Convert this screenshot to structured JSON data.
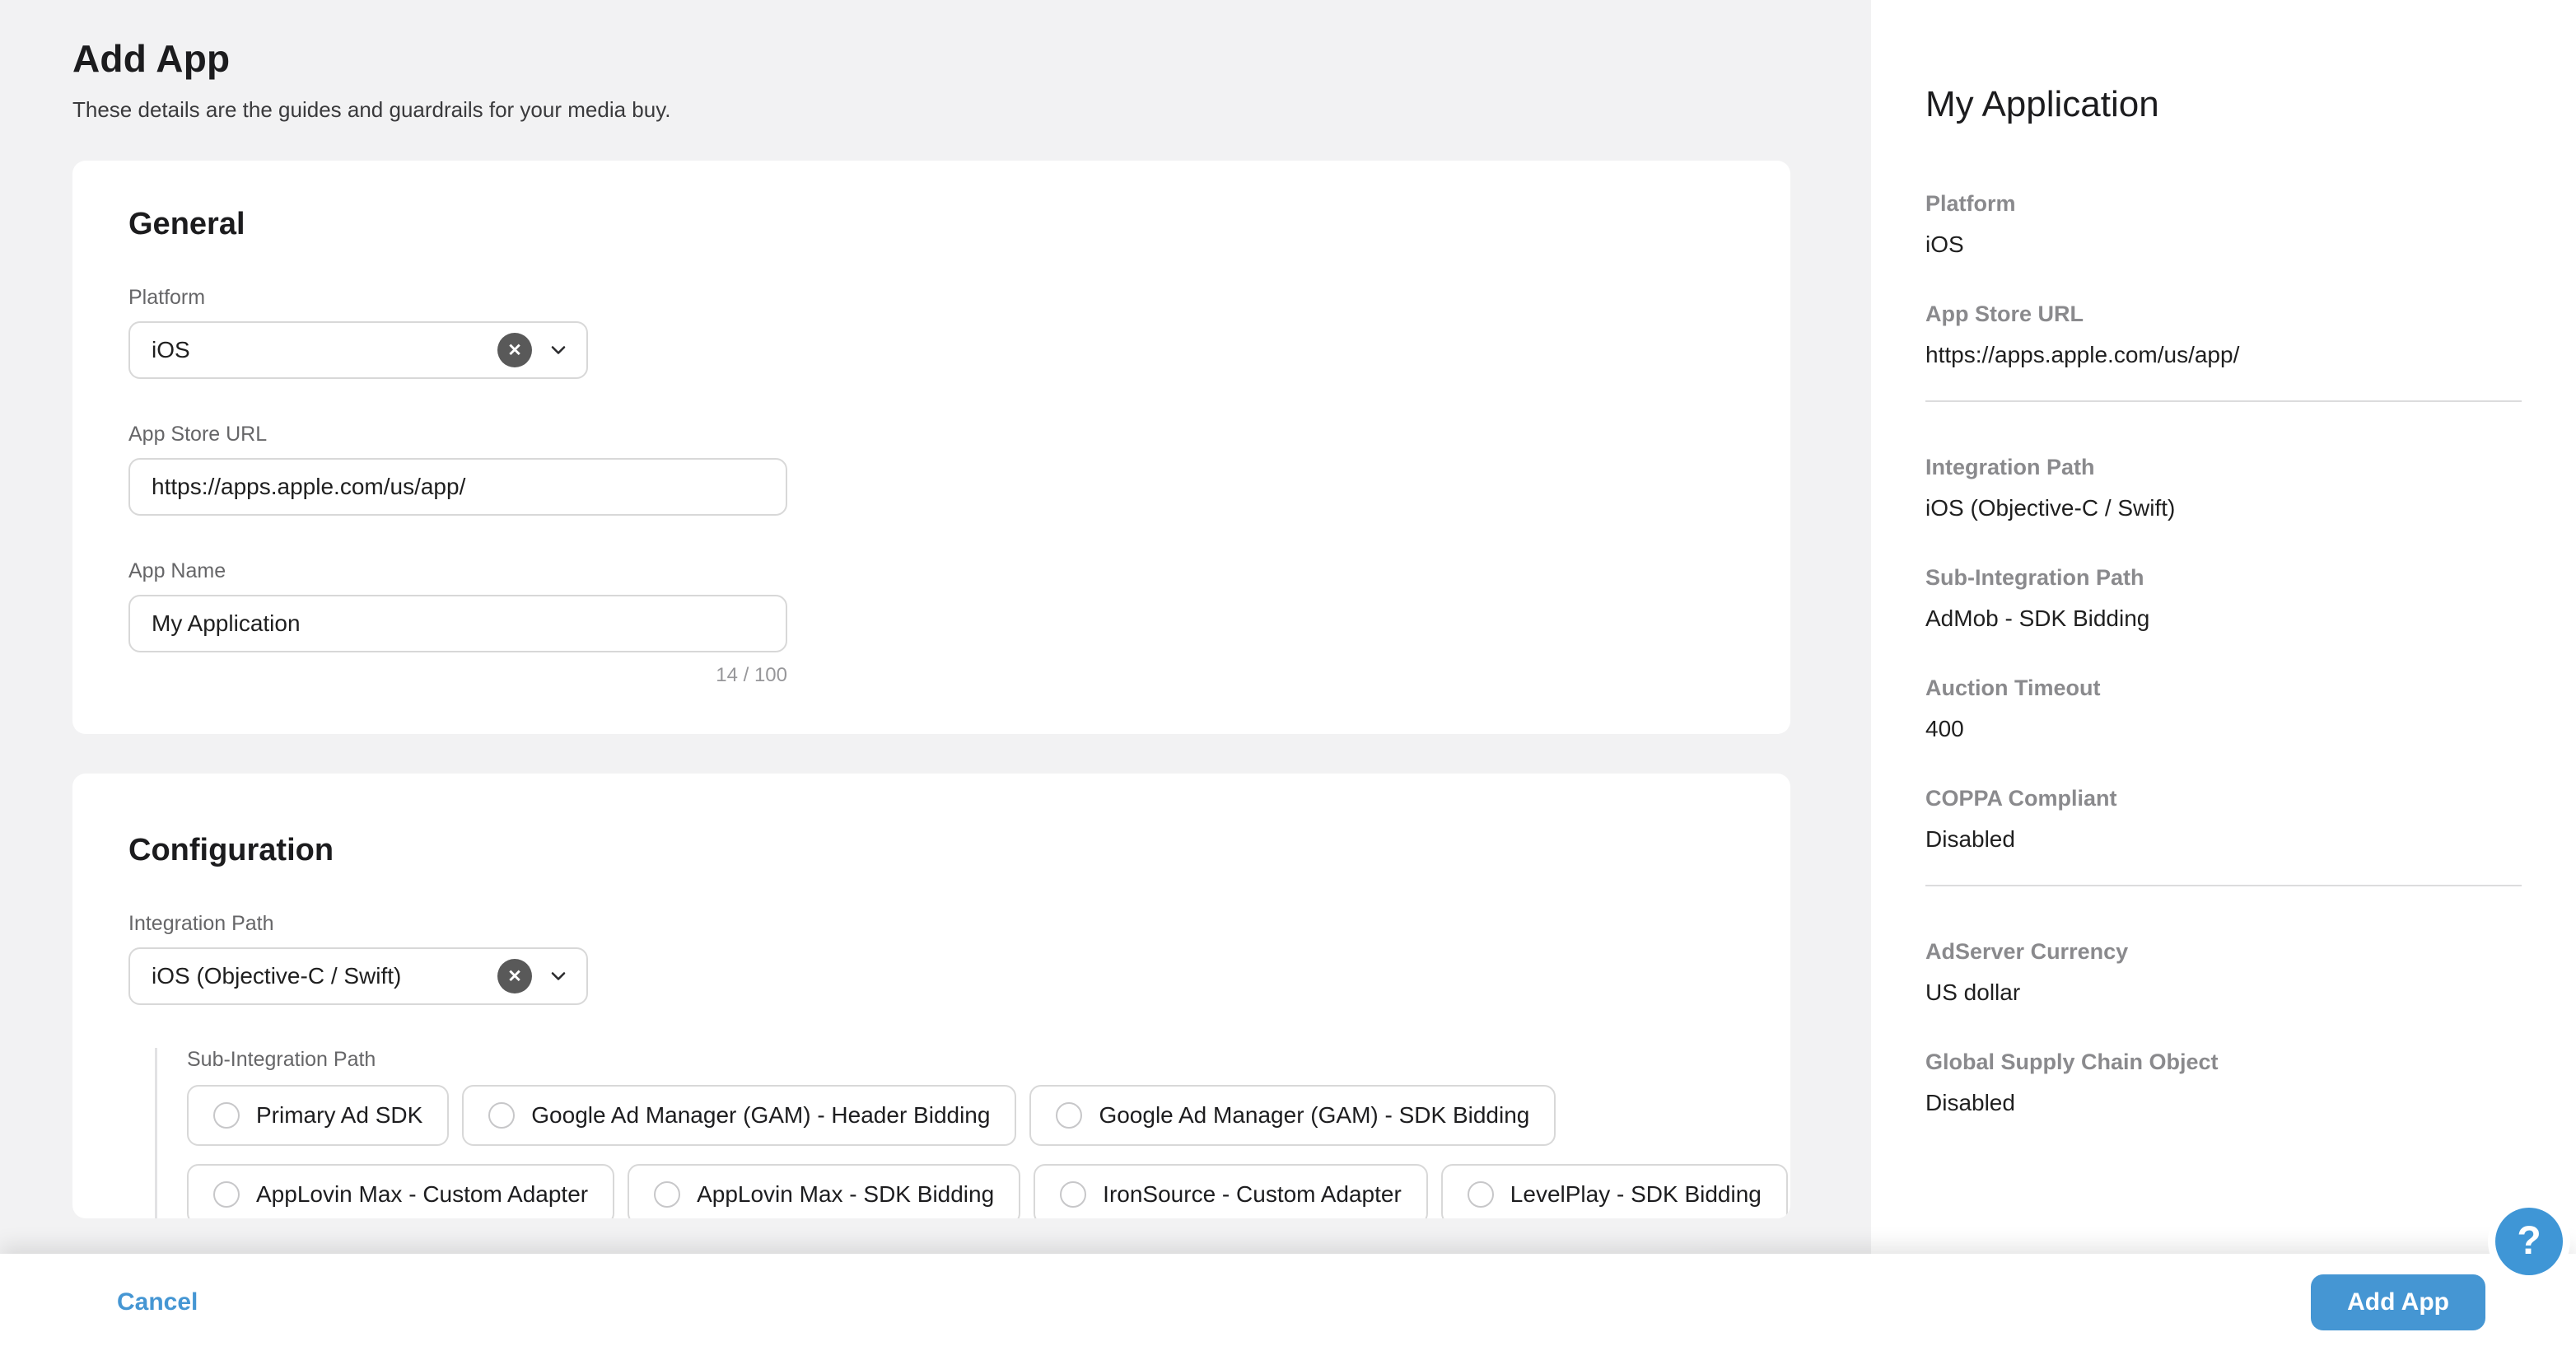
{
  "page": {
    "title": "Add App",
    "subtitle": "These details are the guides and guardrails for your media buy."
  },
  "general": {
    "heading": "General",
    "platform": {
      "label": "Platform",
      "value": "iOS"
    },
    "app_store_url": {
      "label": "App Store URL",
      "value": "https://apps.apple.com/us/app/"
    },
    "app_name": {
      "label": "App Name",
      "value": "My Application",
      "counter": "14 / 100"
    }
  },
  "configuration": {
    "heading": "Configuration",
    "integration_path": {
      "label": "Integration Path",
      "value": "iOS (Objective-C / Swift)"
    },
    "sub_integration_path": {
      "label": "Sub-Integration Path",
      "rows": [
        [
          "Primary Ad SDK",
          "Google Ad Manager (GAM) - Header Bidding",
          "Google Ad Manager (GAM) - SDK Bidding"
        ],
        [
          "AppLovin Max - Custom Adapter",
          "AppLovin Max - SDK Bidding",
          "IronSource - Custom Adapter",
          "LevelPlay - SDK Bidding"
        ]
      ]
    }
  },
  "summary": {
    "title": "My Application",
    "sections": [
      [
        {
          "label": "Platform",
          "value": "iOS"
        },
        {
          "label": "App Store URL",
          "value": "https://apps.apple.com/us/app/"
        }
      ],
      [
        {
          "label": "Integration Path",
          "value": "iOS (Objective-C / Swift)"
        },
        {
          "label": "Sub-Integration Path",
          "value": "AdMob - SDK Bidding"
        },
        {
          "label": "Auction Timeout",
          "value": "400"
        },
        {
          "label": "COPPA Compliant",
          "value": "Disabled"
        }
      ],
      [
        {
          "label": "AdServer Currency",
          "value": "US dollar"
        },
        {
          "label": "Global Supply Chain Object",
          "value": "Disabled"
        }
      ]
    ]
  },
  "footer": {
    "cancel": "Cancel",
    "submit": "Add App"
  },
  "help": {
    "icon": "?"
  },
  "icons": {
    "clear": "✕"
  },
  "colors": {
    "accent": "#4596d3",
    "page_bg": "#f2f2f3",
    "card_bg": "#ffffff",
    "input_border": "#d8d8d8",
    "label_gray": "#666668",
    "sidebar_label_gray": "#8a8a8d",
    "text": "#1f1f1f",
    "counter_gray": "#97979a",
    "divider": "#dcdcdd",
    "clear_button": "#595959"
  }
}
